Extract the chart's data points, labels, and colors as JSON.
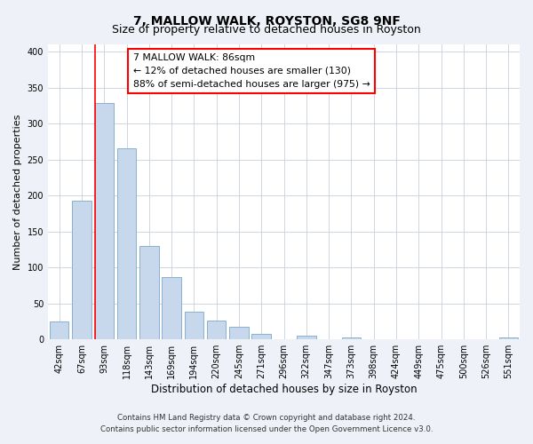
{
  "title_line1": "7, MALLOW WALK, ROYSTON, SG8 9NF",
  "title_line2": "Size of property relative to detached houses in Royston",
  "xlabel": "Distribution of detached houses by size in Royston",
  "ylabel": "Number of detached properties",
  "bar_labels": [
    "42sqm",
    "67sqm",
    "93sqm",
    "118sqm",
    "143sqm",
    "169sqm",
    "194sqm",
    "220sqm",
    "245sqm",
    "271sqm",
    "296sqm",
    "322sqm",
    "347sqm",
    "373sqm",
    "398sqm",
    "424sqm",
    "449sqm",
    "475sqm",
    "500sqm",
    "526sqm",
    "551sqm"
  ],
  "bar_values": [
    25,
    193,
    328,
    265,
    130,
    87,
    38,
    26,
    18,
    8,
    0,
    5,
    0,
    3,
    0,
    0,
    0,
    0,
    0,
    0,
    3
  ],
  "bar_color": "#c8d8ec",
  "bar_edge_color": "#8ab0d0",
  "ylim": [
    0,
    410
  ],
  "yticks": [
    0,
    50,
    100,
    150,
    200,
    250,
    300,
    350,
    400
  ],
  "annotation_text_line1": "7 MALLOW WALK: 86sqm",
  "annotation_text_line2": "← 12% of detached houses are smaller (130)",
  "annotation_text_line3": "88% of semi-detached houses are larger (975) →",
  "red_line_bar_index": 2,
  "footnote_line1": "Contains HM Land Registry data © Crown copyright and database right 2024.",
  "footnote_line2": "Contains public sector information licensed under the Open Government Licence v3.0.",
  "background_color": "#eef1f7",
  "plot_bg_color": "#ffffff",
  "grid_color": "#c8d0dc"
}
